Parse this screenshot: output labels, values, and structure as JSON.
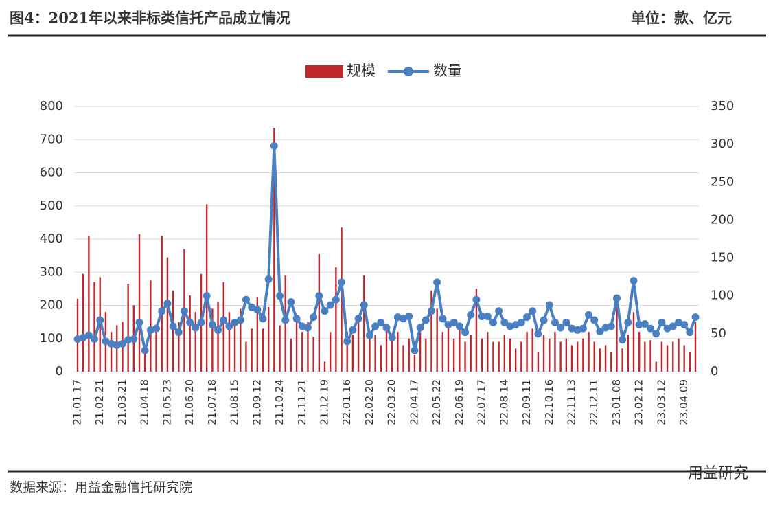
{
  "header": {
    "title": "图4：2021年以来非标类信托产品成立情况",
    "unit": "单位：款、亿元"
  },
  "footer": {
    "source": "数据来源：用益金融信托研究院",
    "watermark": "用益研究"
  },
  "chart_data": {
    "type": "bar",
    "categories": [
      "21.01.17",
      null,
      null,
      null,
      "21.02.21",
      null,
      null,
      null,
      "21.03.21",
      null,
      null,
      null,
      "21.04.18",
      null,
      null,
      null,
      "21.05.23",
      null,
      null,
      null,
      "21.06.20",
      null,
      null,
      null,
      "21.07.18",
      null,
      null,
      null,
      "21.08.15",
      null,
      null,
      null,
      "21.09.12",
      null,
      null,
      null,
      "21.10.24",
      null,
      null,
      null,
      "21.11.21",
      null,
      null,
      null,
      "21.12.19",
      null,
      null,
      null,
      "22.01.16",
      null,
      null,
      null,
      "22.02.20",
      null,
      null,
      null,
      "22.03.20",
      null,
      null,
      null,
      "22.04.17",
      null,
      null,
      null,
      "22.05.22",
      null,
      null,
      null,
      "22.06.19",
      null,
      null,
      null,
      "22.07.17",
      null,
      null,
      null,
      "22.08.14",
      null,
      null,
      null,
      "22.09.11",
      null,
      null,
      null,
      "22.10.16",
      null,
      null,
      null,
      "22.11.13",
      null,
      null,
      null,
      "22.12.11",
      null,
      null,
      null,
      "23.01.08",
      null,
      null,
      null,
      "23.02.12",
      null,
      null,
      null,
      "23.03.12",
      null,
      null,
      null,
      "23.04.09",
      null,
      null
    ],
    "series": [
      {
        "name": "规模",
        "type": "bar",
        "color": "#c0282d",
        "values": [
          220,
          295,
          410,
          270,
          285,
          180,
          120,
          140,
          150,
          265,
          200,
          415,
          80,
          275,
          130,
          410,
          345,
          245,
          150,
          370,
          230,
          180,
          295,
          505,
          190,
          210,
          270,
          180,
          150,
          190,
          90,
          130,
          225,
          130,
          195,
          735,
          140,
          290,
          100,
          160,
          120,
          150,
          105,
          355,
          30,
          120,
          315,
          435,
          120,
          110,
          150,
          290,
          100,
          110,
          80,
          130,
          100,
          120,
          80,
          100,
          50,
          120,
          100,
          245,
          190,
          120,
          140,
          100,
          130,
          90,
          110,
          250,
          100,
          120,
          90,
          90,
          110,
          100,
          70,
          90,
          120,
          130,
          60,
          110,
          100,
          120,
          90,
          100,
          80,
          90,
          100,
          120,
          90,
          70,
          80,
          60,
          215,
          70,
          110,
          180,
          120,
          90,
          95,
          30,
          90,
          80,
          90,
          100,
          80,
          60,
          150
        ]
      },
      {
        "name": "数量",
        "type": "line",
        "axis": "y2",
        "color": "#4a7fc1",
        "values": [
          43,
          45,
          48,
          43,
          68,
          40,
          37,
          35,
          37,
          42,
          43,
          65,
          28,
          55,
          57,
          80,
          90,
          60,
          52,
          80,
          65,
          58,
          65,
          100,
          62,
          55,
          68,
          60,
          65,
          68,
          95,
          85,
          82,
          70,
          122,
          298,
          100,
          68,
          92,
          70,
          60,
          58,
          72,
          100,
          80,
          88,
          95,
          118,
          40,
          55,
          70,
          88,
          48,
          60,
          65,
          58,
          45,
          72,
          70,
          73,
          28,
          58,
          68,
          80,
          118,
          70,
          62,
          65,
          60,
          52,
          75,
          95,
          73,
          73,
          65,
          80,
          65,
          60,
          62,
          65,
          72,
          80,
          50,
          68,
          88,
          65,
          58,
          65,
          57,
          55,
          57,
          75,
          68,
          53,
          58,
          60,
          97,
          42,
          65,
          120,
          62,
          63,
          57,
          50,
          65,
          57,
          60,
          65,
          62,
          52,
          72
        ]
      }
    ],
    "ylim": [
      0,
      800
    ],
    "yticks": [
      0,
      100,
      200,
      300,
      400,
      500,
      600,
      700,
      800
    ],
    "y2lim": [
      0,
      350
    ],
    "y2ticks": [
      0,
      50,
      100,
      150,
      200,
      250,
      300,
      350
    ],
    "grid": true,
    "legend": "top"
  }
}
